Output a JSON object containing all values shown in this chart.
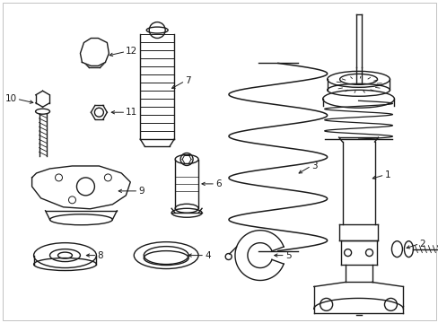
{
  "background_color": "#ffffff",
  "line_color": "#1a1a1a",
  "line_width": 1.0,
  "fig_width": 4.89,
  "fig_height": 3.6,
  "dpi": 100,
  "label_fontsize": 7.5
}
